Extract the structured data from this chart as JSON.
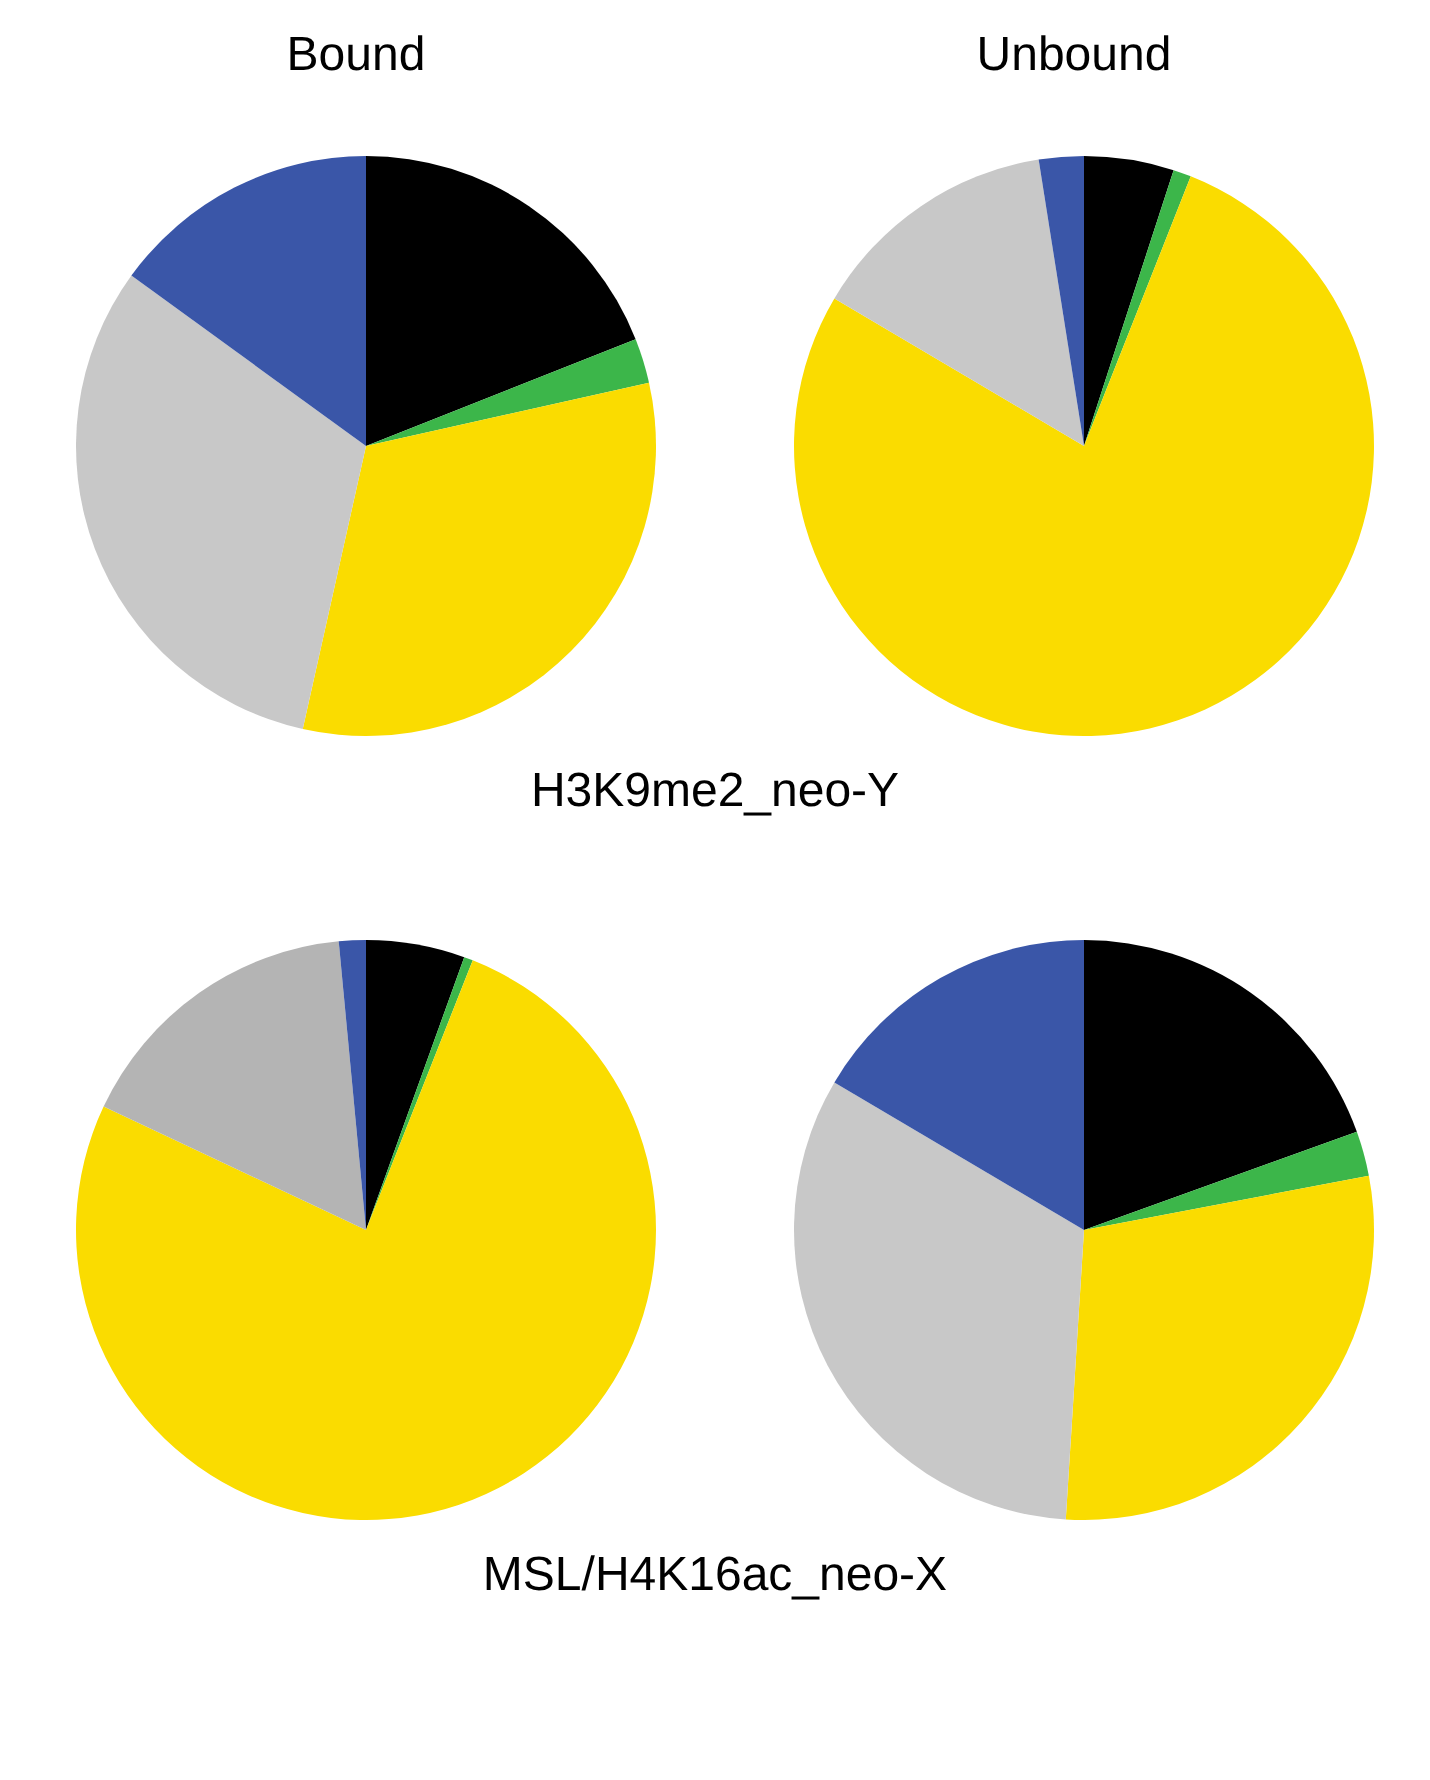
{
  "chart_data": [
    {
      "type": "pie",
      "title": "Bound",
      "annotations": [
        "H3K9me2_neo-Y"
      ],
      "categories": [
        null,
        null,
        null,
        null,
        null
      ],
      "values": [
        19,
        2.5,
        32,
        31.5,
        15
      ],
      "colors": [
        "#000000",
        "#3cb64a",
        "#fadc00",
        "#c8c8c8",
        "#3a56a8"
      ]
    },
    {
      "type": "pie",
      "title": "Unbound",
      "categories": [
        null,
        null,
        null,
        null,
        null
      ],
      "values": [
        5,
        1,
        77.5,
        14,
        2.5
      ],
      "colors": [
        "#000000",
        "#3cb64a",
        "#fadc00",
        "#c8c8c8",
        "#3a56a8"
      ]
    },
    {
      "type": "pie",
      "annotations": [
        "MSL/H4K16ac_neo-X"
      ],
      "categories": [
        null,
        null,
        null,
        null,
        null
      ],
      "values": [
        5.5,
        0.5,
        76,
        16.5,
        1.5
      ],
      "colors": [
        "#000000",
        "#3cb64a",
        "#fadc00",
        "#b4b4b4",
        "#3a56a8"
      ]
    },
    {
      "type": "pie",
      "categories": [
        null,
        null,
        null,
        null,
        null
      ],
      "values": [
        19.5,
        2.5,
        29,
        32.5,
        16.5
      ],
      "colors": [
        "#000000",
        "#3cb64a",
        "#fadc00",
        "#c8c8c8",
        "#3a56a8"
      ]
    }
  ]
}
